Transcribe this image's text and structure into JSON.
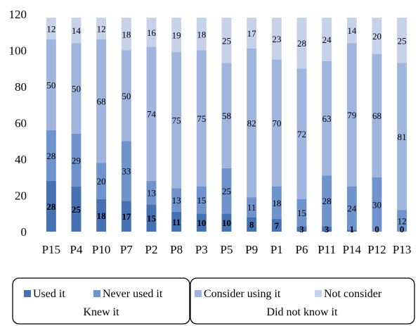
{
  "chart_data": {
    "type": "bar",
    "stacked": true,
    "categories": [
      "P15",
      "P4",
      "P10",
      "P7",
      "P2",
      "P8",
      "P3",
      "P5",
      "P9",
      "P1",
      "P6",
      "P11",
      "P14",
      "P12",
      "P13"
    ],
    "series": [
      {
        "name": "Used it",
        "color": "#4672b4",
        "values": [
          28,
          25,
          18,
          17,
          15,
          11,
          10,
          10,
          8,
          7,
          3,
          3,
          1,
          0,
          0
        ]
      },
      {
        "name": "Never used it",
        "color": "#6f93cc",
        "values": [
          28,
          29,
          20,
          33,
          13,
          13,
          15,
          25,
          11,
          18,
          15,
          28,
          24,
          30,
          12
        ]
      },
      {
        "name": "Consider using it",
        "color": "#a0b5dd",
        "values": [
          50,
          50,
          68,
          50,
          74,
          75,
          75,
          58,
          82,
          70,
          72,
          63,
          79,
          68,
          81
        ]
      },
      {
        "name": "Not consider",
        "color": "#c6d1ea",
        "values": [
          12,
          14,
          12,
          18,
          16,
          19,
          18,
          25,
          17,
          23,
          28,
          24,
          14,
          20,
          25
        ]
      }
    ],
    "yticks": [
      "0",
      "20",
      "40",
      "60",
      "80",
      "100",
      "120"
    ],
    "ylim": [
      0,
      120
    ],
    "legend_groups": [
      {
        "caption": "Knew it",
        "series": [
          "Used it",
          "Never used it"
        ]
      },
      {
        "caption": "Did not know it",
        "series": [
          "Consider using it",
          "Not consider"
        ]
      }
    ],
    "legend_position": "bottom"
  }
}
